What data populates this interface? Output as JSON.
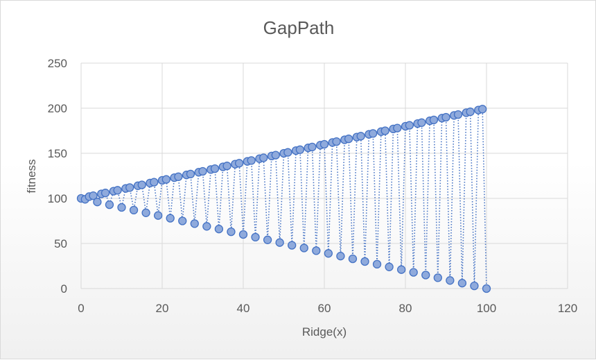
{
  "chart_data": {
    "type": "scatter",
    "title": "GapPath",
    "xlabel": "Ridge(x)",
    "ylabel": "fitness",
    "xlim": [
      0,
      120
    ],
    "ylim": [
      0,
      250
    ],
    "xticks": [
      0,
      20,
      40,
      60,
      80,
      100,
      120
    ],
    "yticks": [
      0,
      50,
      100,
      150,
      200,
      250
    ],
    "grid": true,
    "legend": "none",
    "colors": {
      "marker_fill": "#8FAADC",
      "marker_edge": "#4472C4",
      "line": "#4472C4"
    },
    "series": [
      {
        "x": [
          0,
          1,
          2,
          3,
          4,
          5,
          6,
          7,
          8,
          9,
          10,
          11,
          12,
          13,
          14,
          15,
          16,
          17,
          18,
          19,
          20,
          21,
          22,
          23,
          24,
          25,
          26,
          27,
          28,
          29,
          30,
          31,
          32,
          33,
          34,
          35,
          36,
          37,
          38,
          39,
          40,
          41,
          42,
          43,
          44,
          45,
          46,
          47,
          48,
          49,
          50,
          51,
          52,
          53,
          54,
          55,
          56,
          57,
          58,
          59,
          60,
          61,
          62,
          63,
          64,
          65,
          66,
          67,
          68,
          69,
          70,
          71,
          72,
          73,
          74,
          75,
          76,
          77,
          78,
          79,
          80,
          81,
          82,
          83,
          84,
          85,
          86,
          87,
          88,
          89,
          90,
          91,
          92,
          93,
          94,
          95,
          96,
          97,
          98,
          99,
          100
        ],
        "y": [
          100,
          99,
          102,
          103,
          96,
          105,
          106,
          93,
          108,
          109,
          90,
          111,
          112,
          87,
          114,
          115,
          84,
          117,
          118,
          81,
          120,
          121,
          78,
          123,
          124,
          75,
          126,
          127,
          72,
          129,
          130,
          69,
          132,
          133,
          66,
          135,
          136,
          63,
          138,
          139,
          60,
          141,
          142,
          57,
          144,
          145,
          54,
          147,
          148,
          51,
          150,
          151,
          48,
          153,
          154,
          45,
          156,
          157,
          42,
          159,
          160,
          39,
          162,
          163,
          36,
          165,
          166,
          33,
          168,
          169,
          30,
          171,
          172,
          27,
          174,
          175,
          24,
          177,
          178,
          21,
          180,
          181,
          18,
          183,
          184,
          15,
          186,
          187,
          12,
          189,
          190,
          9,
          192,
          193,
          6,
          195,
          196,
          3,
          198,
          199,
          0
        ]
      }
    ]
  }
}
